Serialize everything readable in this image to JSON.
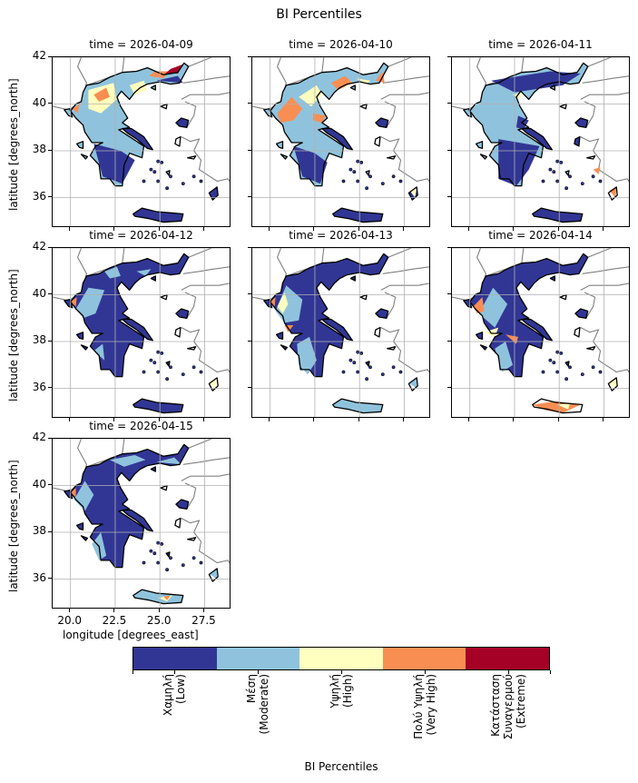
{
  "title": "BI Percentiles",
  "axes": {
    "xlabel": "longitude [degrees_east]",
    "ylabel": "latitude [degrees_north]",
    "xticks": [
      "20.0",
      "22.5",
      "25.0",
      "27.5"
    ],
    "xtick_values": [
      20.0,
      22.5,
      25.0,
      27.5
    ],
    "yticks": [
      "42",
      "40",
      "38",
      "36"
    ],
    "ytick_values": [
      42,
      40,
      38,
      36
    ],
    "xlim": [
      19.0,
      29.0
    ],
    "ylim": [
      34.7,
      42.0
    ],
    "grid": true
  },
  "panels": [
    {
      "title": "time = 2026-04-09",
      "dominant": "Moderate",
      "scale": 0.35
    },
    {
      "title": "time = 2026-04-10",
      "dominant": "Moderate",
      "scale": 0.45
    },
    {
      "title": "time = 2026-04-11",
      "dominant": "Moderate",
      "scale": 0.2
    },
    {
      "title": "time = 2026-04-12",
      "dominant": "Low",
      "scale": 0.1
    },
    {
      "title": "time = 2026-04-13",
      "dominant": "Low",
      "scale": 0.15
    },
    {
      "title": "time = 2026-04-14",
      "dominant": "Low",
      "scale": 0.2
    },
    {
      "title": "time = 2026-04-15",
      "dominant": "Low",
      "scale": 0.1
    }
  ],
  "colorbar": {
    "title": "BI Percentiles",
    "classes": [
      {
        "label": "Χαμηλή\n(Low)",
        "color": "#313695"
      },
      {
        "label": "Μέση\n(Moderate)",
        "color": "#8fc3dd"
      },
      {
        "label": "Υψηλή\n(High)",
        "color": "#ffffbf"
      },
      {
        "label": "Πολύ Υψηλή\n(Very High)",
        "color": "#f98e52"
      },
      {
        "label": "Κατάσταση\nΣυναγερμού\n(Extreme)",
        "color": "#a50026"
      }
    ]
  },
  "colors": {
    "coast": "#000000",
    "border": "#808080",
    "grid": "#b0b0b0",
    "low": "#313695",
    "moderate": "#8fc3dd",
    "high": "#ffffbf",
    "very_high": "#f98e52",
    "extreme": "#a50026"
  }
}
